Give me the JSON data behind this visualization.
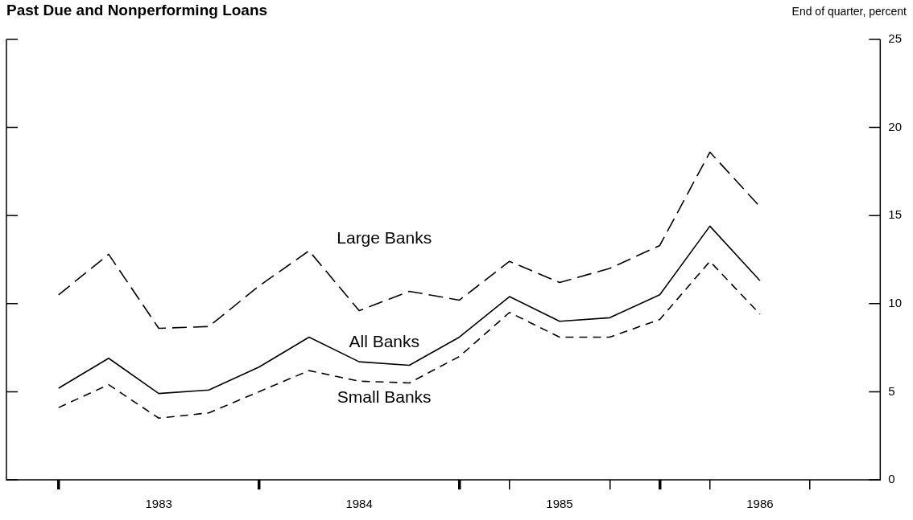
{
  "chart_data": {
    "type": "line",
    "title": "Past Due and Nonperforming Loans",
    "ylabel": "End of quarter, percent",
    "x": [
      1983,
      1983.25,
      1983.5,
      1983.75,
      1984,
      1984.25,
      1984.5,
      1984.75,
      1985,
      1985.25,
      1985.5,
      1985.75,
      1986,
      1986.25,
      1986.5
    ],
    "xlim": [
      1982.74,
      1987.1
    ],
    "xticks": [
      {
        "value": 1983,
        "label": null
      },
      {
        "value": 1983.5,
        "label": "1983"
      },
      {
        "value": 1984,
        "label": null
      },
      {
        "value": 1984.5,
        "label": "1984"
      },
      {
        "value": 1985,
        "label": null
      },
      {
        "value": 1985.25,
        "label": null
      },
      {
        "value": 1985.5,
        "label": "1985"
      },
      {
        "value": 1985.75,
        "label": null
      },
      {
        "value": 1986,
        "label": null
      },
      {
        "value": 1986.25,
        "label": null
      },
      {
        "value": 1986.5,
        "label": "1986"
      },
      {
        "value": 1986.75,
        "label": null
      }
    ],
    "ylim": [
      0,
      25
    ],
    "yticks": [
      0,
      5,
      10,
      15,
      20,
      25
    ],
    "series": [
      {
        "name": "Large Banks",
        "color": "#000000",
        "line_style": "dashed",
        "values": [
          10.5,
          12.8,
          8.6,
          8.7,
          11.0,
          13.0,
          9.6,
          10.7,
          10.2,
          12.4,
          11.2,
          12.0,
          13.3,
          18.6,
          15.5
        ]
      },
      {
        "name": "All Banks",
        "color": "#000000",
        "line_style": "solid",
        "values": [
          5.2,
          6.9,
          4.9,
          5.1,
          6.4,
          8.1,
          6.7,
          6.5,
          8.1,
          10.4,
          9.0,
          9.2,
          10.5,
          14.4,
          11.3
        ]
      },
      {
        "name": "Small Banks",
        "color": "#000000",
        "line_style": "dotted",
        "values": [
          4.1,
          5.4,
          3.5,
          3.8,
          5.0,
          6.2,
          5.6,
          5.5,
          7.0,
          9.5,
          8.1,
          8.1,
          9.1,
          12.4,
          9.4
        ]
      }
    ],
    "marker": "none",
    "grid": false,
    "legend": false
  }
}
